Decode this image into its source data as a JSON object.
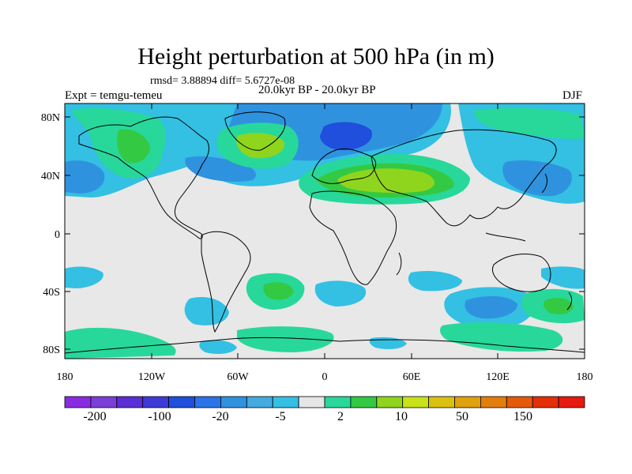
{
  "title": "Height perturbation at 500 hPa (in m)",
  "stats": "rmsd= 3.88894 diff= 5.6727e-08",
  "period": "20.0kyr BP - 20.0kyr BP",
  "experiment": "Expt = temgu-temeu",
  "season": "DJF",
  "map": {
    "projection": "cylindrical equidistant",
    "background_color": "#e8e8e8",
    "lat_ticks": [
      "80N",
      "40N",
      "0",
      "40S",
      "80S"
    ],
    "lon_ticks": [
      "180",
      "120W",
      "60W",
      "0",
      "60E",
      "120E",
      "180"
    ]
  },
  "colorbar": {
    "colors": [
      "#8a2be2",
      "#7b3fd8",
      "#5a2ed6",
      "#3f39d8",
      "#1f4fdc",
      "#2b73e8",
      "#2f92df",
      "#44aadf",
      "#33c0e3",
      "#e6e6e6",
      "#27d89a",
      "#34c942",
      "#8fd51e",
      "#c8e21a",
      "#d9c112",
      "#e0a10e",
      "#e27e0c",
      "#e45a0a",
      "#e52e0a",
      "#e61a10"
    ],
    "labels": [
      "-200",
      "-100",
      "-20",
      "-5",
      "2",
      "10",
      "50",
      "150"
    ]
  }
}
